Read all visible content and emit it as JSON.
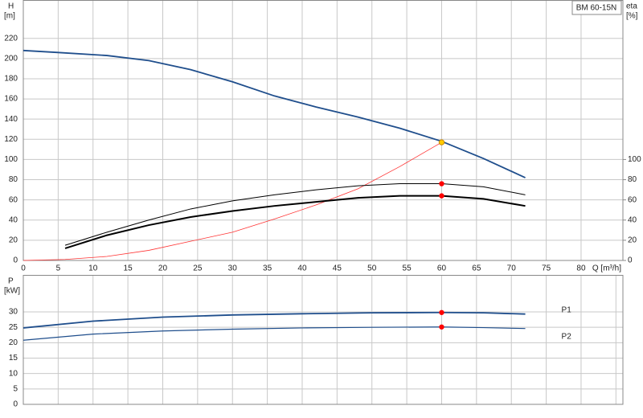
{
  "chart_data": [
    {
      "type": "line",
      "title": "BM 60-15N",
      "y_label": "H",
      "y_unit": "[m]",
      "y2_label": "eta",
      "y2_unit": "[%]",
      "x_label": "Q [m³/h]",
      "xlim": [
        0,
        86
      ],
      "xticks": [
        0,
        5,
        10,
        15,
        20,
        25,
        30,
        35,
        40,
        45,
        50,
        55,
        60,
        65,
        70,
        75,
        80
      ],
      "ylim": [
        0,
        258
      ],
      "yticks": [
        0,
        20,
        40,
        60,
        80,
        100,
        120,
        140,
        160,
        180,
        200,
        220
      ],
      "y2lim": [
        0,
        258
      ],
      "y2ticks": [
        0,
        20,
        40,
        60,
        80,
        100
      ],
      "grid": true,
      "series": [
        {
          "color": "#1f4e8c",
          "width": 1.8,
          "x": [
            0,
            5,
            12,
            18,
            24,
            30,
            36,
            42,
            48,
            54,
            60,
            66,
            72
          ],
          "values": [
            208,
            206,
            203,
            198,
            189,
            177,
            163,
            152,
            142,
            131,
            118,
            101,
            82
          ]
        },
        {
          "color": "#ff3333",
          "width": 0.8,
          "x": [
            0,
            6,
            12,
            18,
            24,
            30,
            36,
            42,
            48,
            54,
            60
          ],
          "values": [
            0,
            1,
            4,
            10,
            19,
            28,
            41,
            55,
            71,
            93,
            117
          ]
        },
        {
          "color": "#000000",
          "width": 1,
          "axis": "y2",
          "x": [
            6,
            12,
            18,
            24,
            30,
            36,
            42,
            48,
            54,
            60,
            66,
            72
          ],
          "values": [
            15,
            28,
            40,
            51,
            59,
            65,
            70,
            74,
            76,
            76,
            73,
            65
          ]
        },
        {
          "color": "#000000",
          "width": 2,
          "axis": "y2",
          "x": [
            6,
            12,
            18,
            24,
            30,
            36,
            42,
            48,
            54,
            60,
            66,
            72
          ],
          "values": [
            12,
            25,
            35,
            43,
            49,
            54,
            58,
            62,
            64,
            64,
            61,
            54
          ]
        }
      ],
      "points": [
        {
          "x": 60,
          "y": 117,
          "color": "#ffcc00"
        },
        {
          "x": 60,
          "y": 76,
          "color": "#ff0000"
        },
        {
          "x": 60,
          "y": 64,
          "color": "#ff0000"
        }
      ]
    },
    {
      "type": "line",
      "y_label": "P",
      "y_unit": "[kW]",
      "xlim": [
        0,
        86
      ],
      "xticks": [
        0,
        5,
        10,
        15,
        20,
        25,
        30,
        35,
        40,
        45,
        50,
        55,
        60,
        65,
        70,
        75,
        80,
        85
      ],
      "show_xtick_labels": false,
      "ylim": [
        0,
        42
      ],
      "yticks": [
        0,
        5,
        10,
        15,
        20,
        25,
        30
      ],
      "grid": true,
      "series": [
        {
          "name": "P1",
          "color": "#1f4e8c",
          "width": 1.8,
          "x": [
            0,
            10,
            20,
            30,
            40,
            50,
            60,
            66,
            72
          ],
          "values": [
            24.8,
            27,
            28.3,
            29,
            29.4,
            29.7,
            29.8,
            29.7,
            29.3
          ]
        },
        {
          "name": "P2",
          "color": "#1f4e8c",
          "width": 1.2,
          "x": [
            0,
            10,
            20,
            30,
            40,
            50,
            60,
            66,
            72
          ],
          "values": [
            20.8,
            22.8,
            23.8,
            24.4,
            24.8,
            25,
            25.1,
            24.9,
            24.6
          ]
        }
      ],
      "points": [
        {
          "x": 60,
          "y": 29.8,
          "color": "#ff0000"
        },
        {
          "x": 60,
          "y": 25.1,
          "color": "#ff0000"
        }
      ]
    }
  ]
}
